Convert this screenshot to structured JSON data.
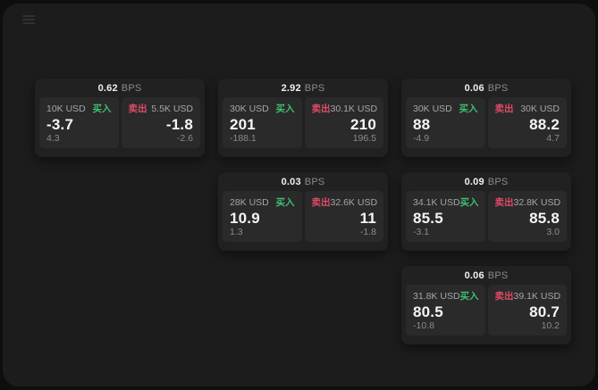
{
  "labels": {
    "buy": "买入",
    "sell": "卖出",
    "bps": "BPS"
  },
  "colors": {
    "buy": "#3fbd73",
    "sell": "#e04a66",
    "page_bg": "#0e0e0e",
    "app_bg": "#1c1c1c",
    "card_bg": "#212121",
    "panel_bg": "#2a2a2a"
  },
  "cards": [
    {
      "bps": "0.62",
      "buy": {
        "amount": "10K USD",
        "value": "-3.7",
        "delta": "4.3"
      },
      "sell": {
        "amount": "5.5K USD",
        "value": "-1.8",
        "delta": "-2.6"
      }
    },
    {
      "bps": "2.92",
      "buy": {
        "amount": "30K USD",
        "value": "201",
        "delta": "-188.1"
      },
      "sell": {
        "amount": "30.1K USD",
        "value": "210",
        "delta": "196.5"
      }
    },
    {
      "bps": "0.06",
      "buy": {
        "amount": "30K USD",
        "value": "88",
        "delta": "-4.9"
      },
      "sell": {
        "amount": "30K USD",
        "value": "88.2",
        "delta": "4.7"
      }
    },
    {
      "bps": "0.03",
      "buy": {
        "amount": "28K USD",
        "value": "10.9",
        "delta": "1.3"
      },
      "sell": {
        "amount": "32.6K USD",
        "value": "11",
        "delta": "-1.8"
      }
    },
    {
      "bps": "0.09",
      "buy": {
        "amount": "34.1K USD",
        "value": "85.5",
        "delta": "-3.1"
      },
      "sell": {
        "amount": "32.8K USD",
        "value": "85.8",
        "delta": "3.0"
      }
    },
    {
      "bps": "0.06",
      "buy": {
        "amount": "31.8K USD",
        "value": "80.5",
        "delta": "-10.8"
      },
      "sell": {
        "amount": "39.1K USD",
        "value": "80.7",
        "delta": "10.2"
      }
    }
  ]
}
